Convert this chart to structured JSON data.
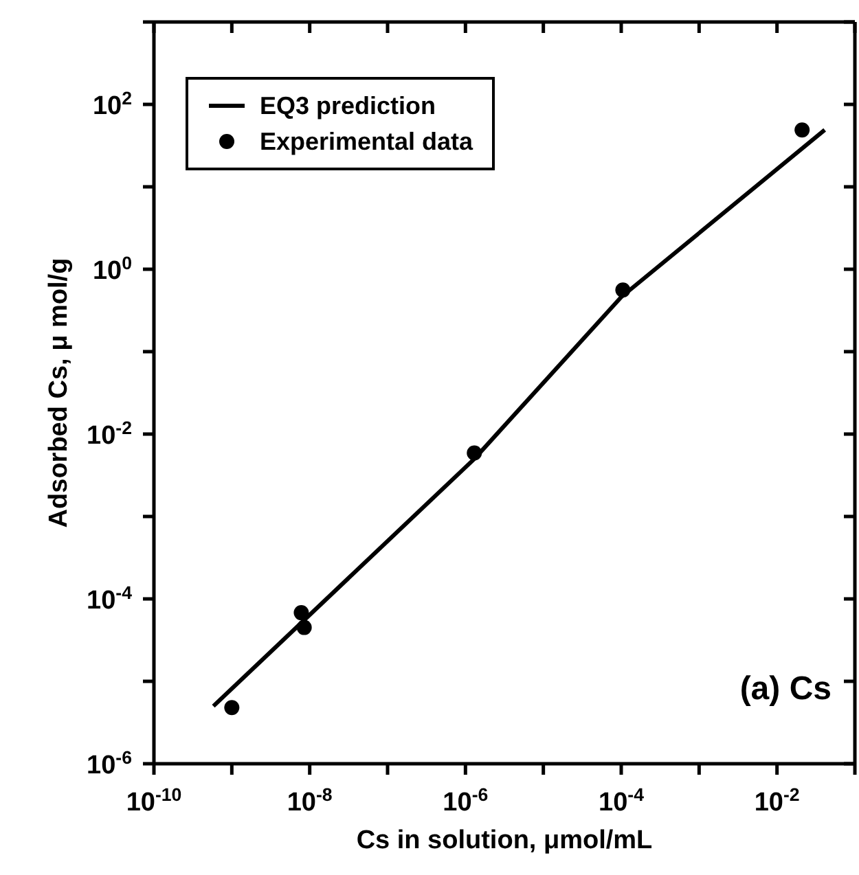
{
  "chart_data": {
    "type": "scatter",
    "xlabel": "Cs in solution, μmol/mL",
    "ylabel": "Adsorbed Cs, μ mol/g",
    "log": "xy",
    "legend": "top left",
    "grid": false,
    "xlim": [
      1e-10,
      0.1
    ],
    "ylim": [
      1e-06,
      1000
    ],
    "xticks": [
      {
        "value": 1e-10,
        "label": "10$^{-10}$"
      },
      {
        "value": 1e-09,
        "label": null
      },
      {
        "value": 1e-08,
        "label": "10$^{-8}$"
      },
      {
        "value": 1e-07,
        "label": null
      },
      {
        "value": 1e-06,
        "label": "10$^{-6}$"
      },
      {
        "value": 1e-05,
        "label": null
      },
      {
        "value": 0.0001,
        "label": "10$^{-4}$"
      },
      {
        "value": 0.001,
        "label": null
      },
      {
        "value": 0.01,
        "label": "10$^{-2}$"
      },
      {
        "value": 0.1,
        "label": null
      }
    ],
    "yticks": [
      {
        "value": 1e-06,
        "label": "10$^{-6}$"
      },
      {
        "value": 1e-05,
        "label": null
      },
      {
        "value": 0.0001,
        "label": "10$^{-4}$"
      },
      {
        "value": 0.001,
        "label": null
      },
      {
        "value": 0.01,
        "label": "10$^{-2}$"
      },
      {
        "value": 0.1,
        "label": null
      },
      {
        "value": 1,
        "label": "10$^{0}$"
      },
      {
        "value": 10,
        "label": null
      },
      {
        "value": 100,
        "label": "10$^{2}$"
      },
      {
        "value": 1000,
        "label": null
      }
    ],
    "annotations": [
      "(a) Cs"
    ],
    "series": [
      {
        "name": "EQ3 prediction",
        "type": "line",
        "color": "#000000",
        "marker": "none",
        "line_style": "solid",
        "x": [
          5.8e-10,
          1.3e-06,
          0.0001,
          0.041
        ],
        "values": [
          5e-06,
          0.005,
          0.46,
          49
        ]
      },
      {
        "name": "Experimental data",
        "color": "#000000",
        "marker": "circle",
        "x": [
          1e-09,
          7.8e-09,
          8.5e-09,
          1.3e-06,
          0.000105,
          0.021
        ],
        "values": [
          4.8e-06,
          6.8e-05,
          4.5e-05,
          0.0059,
          0.56,
          49
        ]
      }
    ]
  }
}
